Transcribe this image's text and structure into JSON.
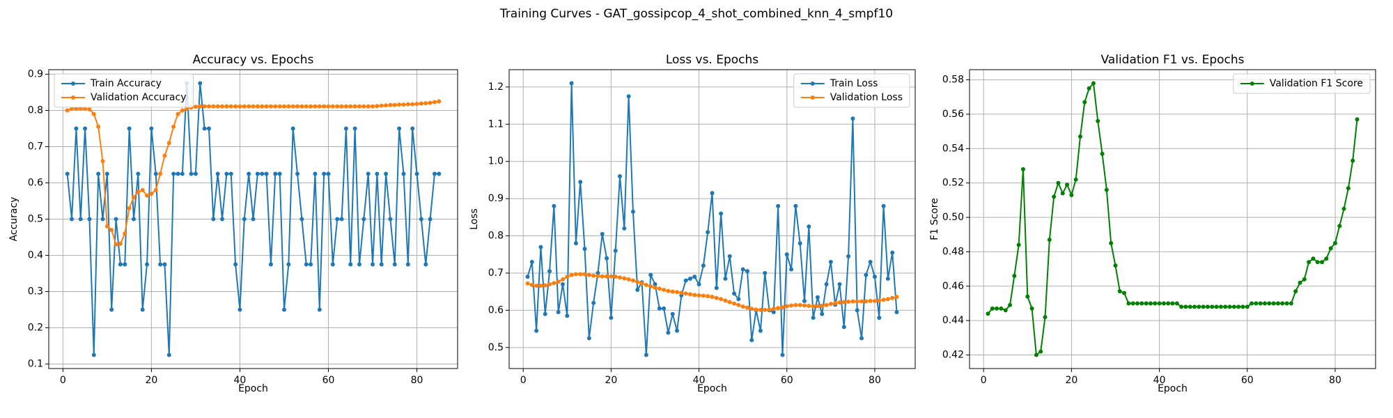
{
  "title": "Training Curves - GAT_gossipcop_4_shot_combined_knn_4_smpf10",
  "chart_data": [
    {
      "type": "line",
      "title": "Accuracy vs. Epochs",
      "xlabel": "Epoch",
      "ylabel": "Accuracy",
      "x": [
        1,
        2,
        3,
        4,
        5,
        6,
        7,
        8,
        9,
        10,
        11,
        12,
        13,
        14,
        15,
        16,
        17,
        18,
        19,
        20,
        21,
        22,
        23,
        24,
        25,
        26,
        27,
        28,
        29,
        30,
        31,
        32,
        33,
        34,
        35,
        36,
        37,
        38,
        39,
        40,
        41,
        42,
        43,
        44,
        45,
        46,
        47,
        48,
        49,
        50,
        51,
        52,
        53,
        54,
        55,
        56,
        57,
        58,
        59,
        60,
        61,
        62,
        63,
        64,
        65,
        66,
        67,
        68,
        69,
        70,
        71,
        72,
        73,
        74,
        75,
        76,
        77,
        78,
        79,
        80,
        81,
        82,
        83,
        84,
        85
      ],
      "series": [
        {
          "name": "Train Accuracy",
          "color": "#1f77b4",
          "values": [
            0.625,
            0.5,
            0.75,
            0.5,
            0.75,
            0.5,
            0.125,
            0.625,
            0.5,
            0.625,
            0.25,
            0.5,
            0.375,
            0.375,
            0.75,
            0.5,
            0.625,
            0.25,
            0.375,
            0.75,
            0.625,
            0.375,
            0.375,
            0.125,
            0.625,
            0.625,
            0.625,
            0.875,
            0.625,
            0.625,
            0.875,
            0.75,
            0.75,
            0.5,
            0.625,
            0.5,
            0.625,
            0.625,
            0.375,
            0.25,
            0.5,
            0.625,
            0.5,
            0.625,
            0.625,
            0.625,
            0.375,
            0.625,
            0.625,
            0.25,
            0.375,
            0.75,
            0.625,
            0.5,
            0.375,
            0.375,
            0.625,
            0.25,
            0.625,
            0.625,
            0.375,
            0.5,
            0.5,
            0.75,
            0.375,
            0.75,
            0.375,
            0.5,
            0.625,
            0.375,
            0.625,
            0.375,
            0.625,
            0.5,
            0.375,
            0.75,
            0.625,
            0.375,
            0.75,
            0.625,
            0.5,
            0.375,
            0.5,
            0.625,
            0.625
          ]
        },
        {
          "name": "Validation Accuracy",
          "color": "#ff7f0e",
          "values": [
            0.8,
            0.805,
            0.805,
            0.805,
            0.805,
            0.803,
            0.79,
            0.755,
            0.66,
            0.48,
            0.47,
            0.43,
            0.432,
            0.46,
            0.53,
            0.56,
            0.575,
            0.58,
            0.565,
            0.57,
            0.58,
            0.625,
            0.675,
            0.71,
            0.755,
            0.79,
            0.8,
            0.805,
            0.808,
            0.81,
            0.811,
            0.811,
            0.811,
            0.811,
            0.811,
            0.811,
            0.811,
            0.811,
            0.811,
            0.811,
            0.811,
            0.811,
            0.811,
            0.811,
            0.811,
            0.811,
            0.811,
            0.811,
            0.811,
            0.811,
            0.811,
            0.811,
            0.811,
            0.811,
            0.811,
            0.811,
            0.811,
            0.811,
            0.811,
            0.811,
            0.811,
            0.811,
            0.811,
            0.811,
            0.811,
            0.811,
            0.811,
            0.811,
            0.811,
            0.811,
            0.812,
            0.813,
            0.814,
            0.815,
            0.815,
            0.816,
            0.816,
            0.817,
            0.817,
            0.818,
            0.819,
            0.82,
            0.821,
            0.823,
            0.825
          ]
        }
      ],
      "xlim": [
        -3.2,
        89.2
      ],
      "ylim": [
        0.0875,
        0.9125
      ],
      "xticks": [
        0,
        20,
        40,
        60,
        80
      ],
      "yticks": [
        0.1,
        0.2,
        0.3,
        0.4,
        0.5,
        0.6,
        0.7,
        0.8,
        0.9
      ],
      "grid": true,
      "legend": "upper left"
    },
    {
      "type": "line",
      "title": "Loss vs. Epochs",
      "xlabel": "Epoch",
      "ylabel": "Loss",
      "x": [
        1,
        2,
        3,
        4,
        5,
        6,
        7,
        8,
        9,
        10,
        11,
        12,
        13,
        14,
        15,
        16,
        17,
        18,
        19,
        20,
        21,
        22,
        23,
        24,
        25,
        26,
        27,
        28,
        29,
        30,
        31,
        32,
        33,
        34,
        35,
        36,
        37,
        38,
        39,
        40,
        41,
        42,
        43,
        44,
        45,
        46,
        47,
        48,
        49,
        50,
        51,
        52,
        53,
        54,
        55,
        56,
        57,
        58,
        59,
        60,
        61,
        62,
        63,
        64,
        65,
        66,
        67,
        68,
        69,
        70,
        71,
        72,
        73,
        74,
        75,
        76,
        77,
        78,
        79,
        80,
        81,
        82,
        83,
        84,
        85
      ],
      "series": [
        {
          "name": "Train Loss",
          "color": "#1f77b4",
          "values": [
            0.69,
            0.73,
            0.545,
            0.77,
            0.59,
            0.705,
            0.88,
            0.595,
            0.67,
            0.585,
            1.21,
            0.78,
            0.945,
            0.765,
            0.525,
            0.62,
            0.7,
            0.805,
            0.74,
            0.58,
            0.76,
            0.96,
            0.82,
            1.175,
            0.865,
            0.655,
            0.675,
            0.48,
            0.695,
            0.67,
            0.605,
            0.605,
            0.54,
            0.59,
            0.545,
            0.64,
            0.68,
            0.685,
            0.69,
            0.67,
            0.72,
            0.81,
            0.915,
            0.66,
            0.86,
            0.685,
            0.745,
            0.645,
            0.63,
            0.71,
            0.705,
            0.52,
            0.6,
            0.545,
            0.7,
            0.6,
            0.595,
            0.88,
            0.48,
            0.75,
            0.71,
            0.88,
            0.78,
            0.625,
            0.825,
            0.58,
            0.635,
            0.59,
            0.67,
            0.73,
            0.615,
            0.67,
            0.555,
            0.745,
            1.115,
            0.6,
            0.525,
            0.695,
            0.73,
            0.69,
            0.58,
            0.88,
            0.685,
            0.755,
            0.595
          ]
        },
        {
          "name": "Validation Loss",
          "color": "#ff7f0e",
          "values": [
            0.672,
            0.668,
            0.666,
            0.666,
            0.667,
            0.67,
            0.673,
            0.677,
            0.683,
            0.69,
            0.695,
            0.697,
            0.697,
            0.697,
            0.695,
            0.693,
            0.692,
            0.691,
            0.691,
            0.691,
            0.69,
            0.688,
            0.686,
            0.683,
            0.68,
            0.676,
            0.672,
            0.668,
            0.664,
            0.661,
            0.658,
            0.655,
            0.652,
            0.65,
            0.649,
            0.647,
            0.645,
            0.643,
            0.641,
            0.64,
            0.639,
            0.638,
            0.636,
            0.633,
            0.63,
            0.626,
            0.622,
            0.618,
            0.614,
            0.61,
            0.607,
            0.604,
            0.602,
            0.601,
            0.601,
            0.602,
            0.604,
            0.606,
            0.608,
            0.611,
            0.613,
            0.614,
            0.614,
            0.613,
            0.612,
            0.611,
            0.611,
            0.612,
            0.614,
            0.617,
            0.619,
            0.621,
            0.622,
            0.623,
            0.624,
            0.624,
            0.624,
            0.624,
            0.625,
            0.625,
            0.626,
            0.628,
            0.63,
            0.633,
            0.636
          ]
        }
      ],
      "xlim": [
        -3.2,
        89.2
      ],
      "ylim": [
        0.4435,
        1.2465
      ],
      "xticks": [
        0,
        20,
        40,
        60,
        80
      ],
      "yticks": [
        0.5,
        0.6,
        0.7,
        0.8,
        0.9,
        {
          "value": 1,
          "label": "1.0"
        },
        1.1,
        1.2
      ],
      "grid": true,
      "legend": "upper right"
    },
    {
      "type": "line",
      "title": "Validation F1 vs. Epochs",
      "xlabel": "Epoch",
      "ylabel": "F1 Score",
      "x": [
        1,
        2,
        3,
        4,
        5,
        6,
        7,
        8,
        9,
        10,
        11,
        12,
        13,
        14,
        15,
        16,
        17,
        18,
        19,
        20,
        21,
        22,
        23,
        24,
        25,
        26,
        27,
        28,
        29,
        30,
        31,
        32,
        33,
        34,
        35,
        36,
        37,
        38,
        39,
        40,
        41,
        42,
        43,
        44,
        45,
        46,
        47,
        48,
        49,
        50,
        51,
        52,
        53,
        54,
        55,
        56,
        57,
        58,
        59,
        60,
        61,
        62,
        63,
        64,
        65,
        66,
        67,
        68,
        69,
        70,
        71,
        72,
        73,
        74,
        75,
        76,
        77,
        78,
        79,
        80,
        81,
        82,
        83,
        84,
        85
      ],
      "series": [
        {
          "name": "Validation F1 Score",
          "color": "#008000",
          "values": [
            0.444,
            0.447,
            0.447,
            0.447,
            0.446,
            0.449,
            0.466,
            0.484,
            0.528,
            0.454,
            0.447,
            0.42,
            0.422,
            0.442,
            0.487,
            0.512,
            0.52,
            0.514,
            0.519,
            0.513,
            0.522,
            0.547,
            0.567,
            0.575,
            0.578,
            0.556,
            0.537,
            0.516,
            0.485,
            0.472,
            0.457,
            0.456,
            0.45,
            0.45,
            0.45,
            0.45,
            0.45,
            0.45,
            0.45,
            0.45,
            0.45,
            0.45,
            0.45,
            0.45,
            0.448,
            0.448,
            0.448,
            0.448,
            0.448,
            0.448,
            0.448,
            0.448,
            0.448,
            0.448,
            0.448,
            0.448,
            0.448,
            0.448,
            0.448,
            0.448,
            0.45,
            0.45,
            0.45,
            0.45,
            0.45,
            0.45,
            0.45,
            0.45,
            0.45,
            0.45,
            0.457,
            0.462,
            0.464,
            0.474,
            0.476,
            0.474,
            0.474,
            0.476,
            0.482,
            0.485,
            0.495,
            0.505,
            0.517,
            0.533,
            0.557
          ]
        }
      ],
      "xlim": [
        -3.2,
        89.2
      ],
      "ylim": [
        0.4121,
        0.5859
      ],
      "xticks": [
        0,
        20,
        40,
        60,
        80
      ],
      "yticks": [
        0.42,
        0.44,
        0.46,
        0.48,
        {
          "value": 0.5,
          "label": "0.50"
        },
        0.52,
        0.54,
        0.56,
        0.58
      ],
      "grid": true,
      "legend": "upper right"
    }
  ]
}
